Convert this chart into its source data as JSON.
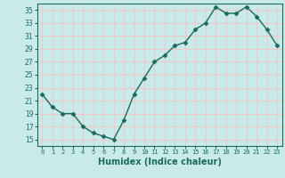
{
  "x": [
    0,
    1,
    2,
    3,
    4,
    5,
    6,
    7,
    8,
    9,
    10,
    11,
    12,
    13,
    14,
    15,
    16,
    17,
    18,
    19,
    20,
    21,
    22,
    23
  ],
  "y": [
    22,
    20,
    19,
    19,
    17,
    16,
    15.5,
    15,
    18,
    22,
    24.5,
    27,
    28,
    29.5,
    30,
    32,
    33,
    35.5,
    34.5,
    34.5,
    35.5,
    34,
    32,
    29.5
  ],
  "line_color": "#1a6b5a",
  "marker_color": "#1a6b5a",
  "bg_color": "#c8eaea",
  "grid_color": "#f0c8c8",
  "xlabel": "Humidex (Indice chaleur)",
  "ylim": [
    14,
    36
  ],
  "yticks": [
    15,
    17,
    19,
    21,
    23,
    25,
    27,
    29,
    31,
    33,
    35
  ],
  "xlim": [
    -0.5,
    23.5
  ],
  "xticks": [
    0,
    1,
    2,
    3,
    4,
    5,
    6,
    7,
    8,
    9,
    10,
    11,
    12,
    13,
    14,
    15,
    16,
    17,
    18,
    19,
    20,
    21,
    22,
    23
  ]
}
